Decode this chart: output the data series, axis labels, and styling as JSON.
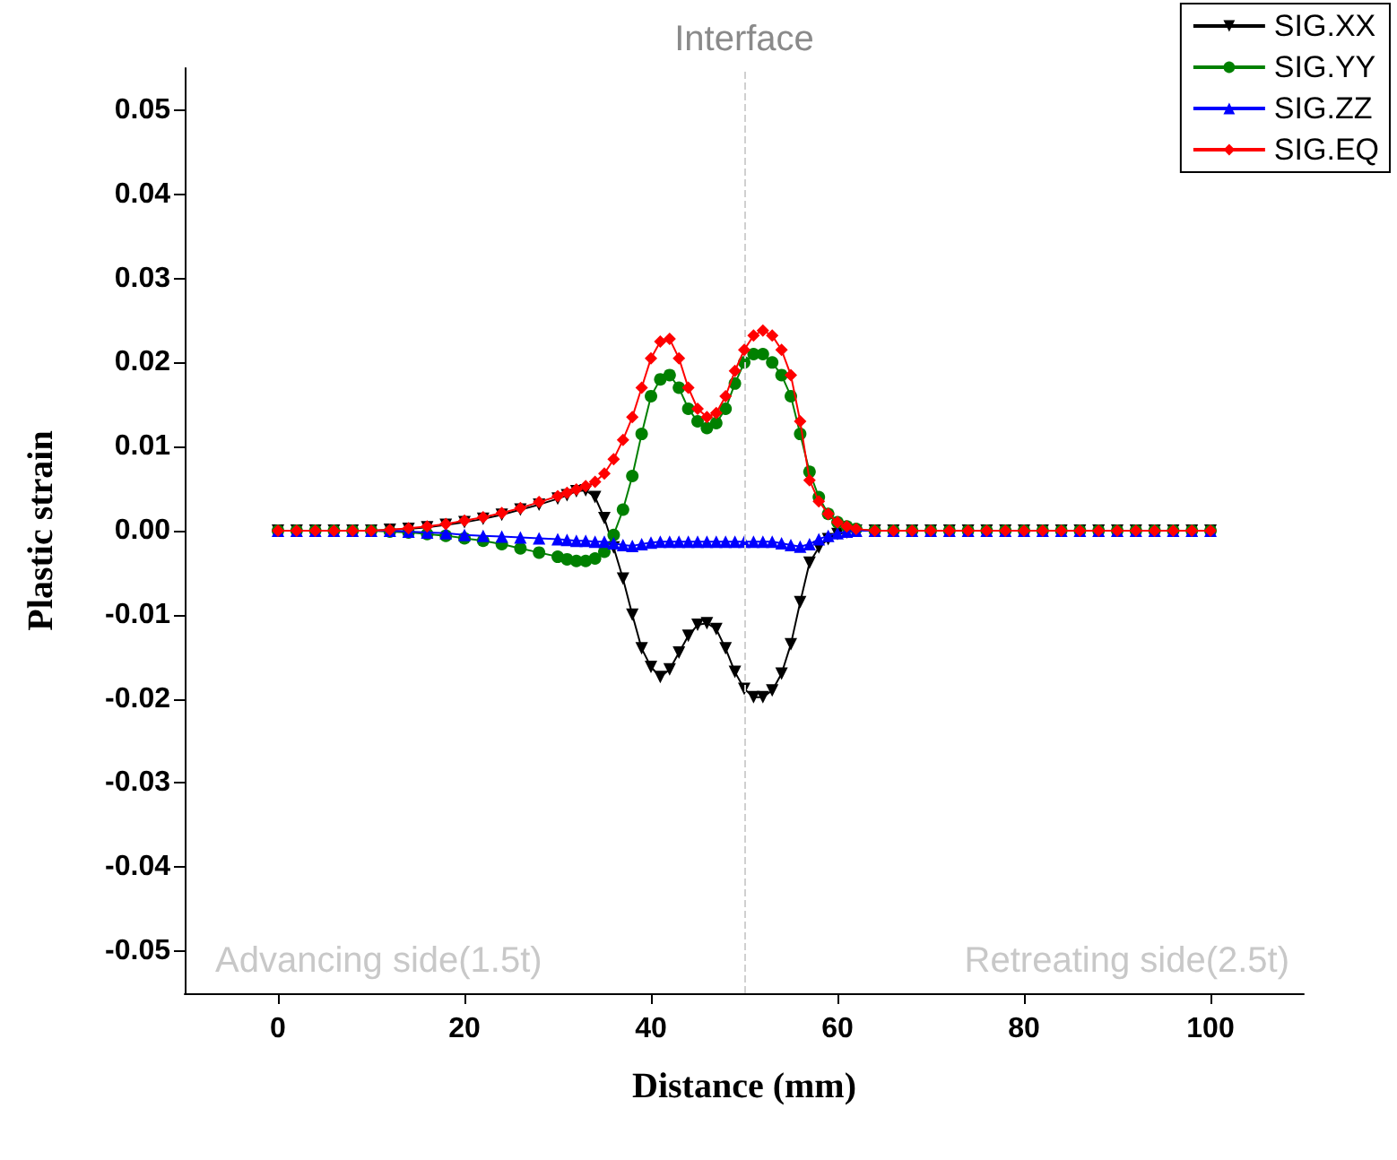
{
  "chart_data": {
    "type": "line",
    "xlabel": "Distance (mm)",
    "ylabel": "Plastic strain",
    "x": [
      0,
      2,
      4,
      6,
      8,
      10,
      12,
      14,
      16,
      18,
      20,
      22,
      24,
      26,
      28,
      30,
      31,
      32,
      33,
      34,
      35,
      36,
      37,
      38,
      39,
      40,
      41,
      42,
      43,
      44,
      45,
      46,
      47,
      48,
      49,
      50,
      51,
      52,
      53,
      54,
      55,
      56,
      57,
      58,
      59,
      60,
      61,
      62,
      64,
      66,
      68,
      70,
      72,
      74,
      76,
      78,
      80,
      82,
      84,
      86,
      88,
      90,
      92,
      94,
      96,
      98,
      100
    ],
    "series": [
      {
        "name": "SIG.XX",
        "color": "#000000",
        "marker": "triangle-down",
        "values": [
          0,
          0,
          0,
          0,
          0,
          0,
          0.0001,
          0.0002,
          0.0004,
          0.0007,
          0.001,
          0.0014,
          0.0019,
          0.0025,
          0.0031,
          0.0038,
          0.0042,
          0.0047,
          0.0048,
          0.004,
          0.0015,
          -0.002,
          -0.0057,
          -0.01,
          -0.014,
          -0.0162,
          -0.0174,
          -0.0165,
          -0.0145,
          -0.0125,
          -0.0112,
          -0.011,
          -0.0117,
          -0.014,
          -0.0168,
          -0.0188,
          -0.0198,
          -0.0198,
          -0.019,
          -0.017,
          -0.0135,
          -0.0085,
          -0.0038,
          -0.002,
          -0.001,
          -0.0004,
          -0.0002,
          0,
          0,
          0,
          0,
          0,
          0,
          0,
          0,
          0,
          0,
          0,
          0,
          0,
          0,
          0,
          0,
          0,
          0,
          0,
          0
        ]
      },
      {
        "name": "SIG.YY",
        "color": "#008000",
        "marker": "circle",
        "values": [
          0,
          0,
          0,
          0,
          0,
          0,
          -0.0001,
          -0.0002,
          -0.0004,
          -0.0006,
          -0.0009,
          -0.0012,
          -0.0016,
          -0.0021,
          -0.0026,
          -0.0031,
          -0.0034,
          -0.0036,
          -0.0036,
          -0.0033,
          -0.0025,
          -0.0005,
          0.0025,
          0.0065,
          0.0115,
          0.016,
          0.018,
          0.0185,
          0.017,
          0.0145,
          0.013,
          0.0122,
          0.0128,
          0.0145,
          0.0175,
          0.02,
          0.021,
          0.021,
          0.02,
          0.0185,
          0.016,
          0.0115,
          0.007,
          0.004,
          0.002,
          0.001,
          0.0005,
          0.0002,
          0,
          0,
          0,
          0,
          0,
          0,
          0,
          0,
          0,
          0,
          0,
          0,
          0,
          0,
          0,
          0,
          0,
          0,
          0
        ]
      },
      {
        "name": "SIG.ZZ",
        "color": "#0000ff",
        "marker": "triangle",
        "values": [
          0,
          0,
          0,
          0,
          0,
          0,
          0,
          -0.0001,
          -0.0002,
          -0.0003,
          -0.0005,
          -0.0006,
          -0.0007,
          -0.0008,
          -0.0009,
          -0.001,
          -0.0011,
          -0.0012,
          -0.0012,
          -0.0013,
          -0.0013,
          -0.0015,
          -0.0017,
          -0.0018,
          -0.0016,
          -0.0014,
          -0.0013,
          -0.0013,
          -0.0013,
          -0.0013,
          -0.0013,
          -0.0013,
          -0.0013,
          -0.0013,
          -0.0013,
          -0.0013,
          -0.0013,
          -0.0013,
          -0.0013,
          -0.0015,
          -0.0017,
          -0.0019,
          -0.0016,
          -0.001,
          -0.0006,
          -0.0003,
          -0.0001,
          0,
          0,
          0,
          0,
          0,
          0,
          0,
          0,
          0,
          0,
          0,
          0,
          0,
          0,
          0,
          0,
          0,
          0,
          0,
          0
        ]
      },
      {
        "name": "SIG.EQ",
        "color": "#ff0000",
        "marker": "diamond",
        "values": [
          0,
          0,
          0,
          0,
          0,
          0,
          0.0001,
          0.0003,
          0.0005,
          0.0008,
          0.0012,
          0.0016,
          0.0021,
          0.0027,
          0.0034,
          0.0041,
          0.0045,
          0.0049,
          0.0053,
          0.0058,
          0.0068,
          0.0085,
          0.0108,
          0.0135,
          0.017,
          0.0205,
          0.0225,
          0.0228,
          0.0205,
          0.017,
          0.0145,
          0.0135,
          0.014,
          0.016,
          0.019,
          0.0215,
          0.0232,
          0.0238,
          0.0232,
          0.0215,
          0.0185,
          0.013,
          0.006,
          0.0035,
          0.002,
          0.001,
          0.0005,
          0.0002,
          0,
          0,
          0,
          0,
          0,
          0,
          0,
          0,
          0,
          0,
          0,
          0,
          0,
          0,
          0,
          0,
          0,
          0,
          0
        ]
      }
    ],
    "xlim": [
      -10,
      110
    ],
    "xticks": [
      0,
      20,
      40,
      60,
      80,
      100
    ],
    "ylim": [
      -0.055,
      0.055
    ],
    "yticks": [
      {
        "value": -0.05,
        "label": "-0.05"
      },
      {
        "value": -0.04,
        "label": "-0.04"
      },
      {
        "value": -0.03,
        "label": "-0.03"
      },
      {
        "value": -0.02,
        "label": "-0.02"
      },
      {
        "value": -0.01,
        "label": "-0.01"
      },
      {
        "value": 0,
        "label": "0.00"
      },
      {
        "value": 0.01,
        "label": "0.01"
      },
      {
        "value": 0.02,
        "label": "0.02"
      },
      {
        "value": 0.03,
        "label": "0.03"
      },
      {
        "value": 0.04,
        "label": "0.04"
      },
      {
        "value": 0.05,
        "label": "0.05"
      }
    ],
    "ref_lines": [
      {
        "axis": "x",
        "value": 50,
        "label": "Interface",
        "color": "#d0d0d0",
        "line_style": "dashed"
      }
    ],
    "annotations": [
      "Advancing side(1.5t)",
      "Retreating side(2.5t)"
    ],
    "grid": false,
    "legend": "top right",
    "line_style": "solid"
  }
}
